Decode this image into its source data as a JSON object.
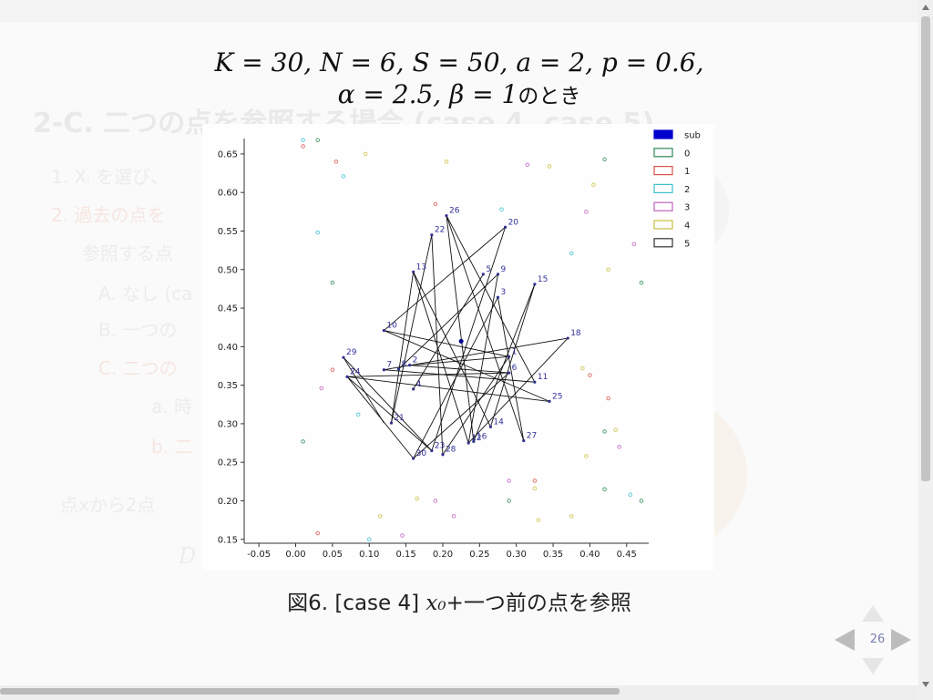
{
  "slide": {
    "formula_line1": "K = 30, N = 6, S = 50, a = 2, p = 0.6,",
    "formula_line2_math": "α = 2.5, β = 1",
    "formula_line2_text": "のとき",
    "caption_prefix": "図6. [case 4] ",
    "caption_math": "x₀",
    "caption_suffix": "+一つ前の点を参照",
    "page_number": "26",
    "background_text": {
      "heading": "2-C. 二つの点を参照する場合 (case 4, case 5)",
      "item1": "1. Xᵢ を選び、",
      "item2": "2. 過去の点を",
      "item2b": "参照する点",
      "itemA": "A. なし (ca",
      "itemB": "B. 一つの",
      "itemC": "C. 二つの",
      "itema": "a. 時",
      "itemb": "b. 二",
      "bullet": "点xから2点",
      "formula": "D"
    }
  },
  "icons": {
    "nav_left": "left-triangle-icon",
    "nav_right": "right-triangle-icon",
    "nav_up": "up-triangle-icon",
    "nav_down": "down-triangle-icon"
  },
  "chart_data": {
    "type": "scatter",
    "title": "",
    "xlabel": "",
    "ylabel": "",
    "xlim": [
      -0.07,
      0.48
    ],
    "ylim": [
      0.145,
      0.67
    ],
    "xticks": [
      -0.05,
      0.0,
      0.05,
      0.1,
      0.15,
      0.2,
      0.25,
      0.3,
      0.35,
      0.4,
      0.45
    ],
    "yticks": [
      0.15,
      0.2,
      0.25,
      0.3,
      0.35,
      0.4,
      0.45,
      0.5,
      0.55,
      0.6,
      0.65
    ],
    "legend_position": "top-right",
    "legend": [
      {
        "label": "sub",
        "color": "#0000cc",
        "filled": true
      },
      {
        "label": "0",
        "color": "#2e8b57",
        "filled": false
      },
      {
        "label": "1",
        "color": "#d9534f",
        "filled": false
      },
      {
        "label": "2",
        "color": "#3cbfcf",
        "filled": false
      },
      {
        "label": "3",
        "color": "#c060c0",
        "filled": false
      },
      {
        "label": "4",
        "color": "#c8c040",
        "filled": false
      },
      {
        "label": "5",
        "color": "#333333",
        "filled": false
      }
    ],
    "sub_point": {
      "x": 0.225,
      "y": 0.407
    },
    "labeled_points": [
      {
        "label": "1",
        "x": 0.29,
        "y": 0.387
      },
      {
        "label": "2",
        "x": 0.155,
        "y": 0.376
      },
      {
        "label": "3",
        "x": 0.275,
        "y": 0.464
      },
      {
        "label": "4",
        "x": 0.16,
        "y": 0.345
      },
      {
        "label": "5",
        "x": 0.255,
        "y": 0.494
      },
      {
        "label": "6",
        "x": 0.29,
        "y": 0.366
      },
      {
        "label": "7",
        "x": 0.12,
        "y": 0.37
      },
      {
        "label": "8",
        "x": 0.14,
        "y": 0.371
      },
      {
        "label": "9",
        "x": 0.275,
        "y": 0.494
      },
      {
        "label": "10",
        "x": 0.12,
        "y": 0.421
      },
      {
        "label": "11",
        "x": 0.325,
        "y": 0.354
      },
      {
        "label": "12",
        "x": 0.235,
        "y": 0.275
      },
      {
        "label": "13",
        "x": 0.16,
        "y": 0.497
      },
      {
        "label": "14",
        "x": 0.265,
        "y": 0.296
      },
      {
        "label": "15",
        "x": 0.325,
        "y": 0.481
      },
      {
        "label": "16",
        "x": 0.242,
        "y": 0.277
      },
      {
        "label": "18",
        "x": 0.37,
        "y": 0.411
      },
      {
        "label": "20",
        "x": 0.285,
        "y": 0.555
      },
      {
        "label": "21",
        "x": 0.13,
        "y": 0.301
      },
      {
        "label": "22",
        "x": 0.185,
        "y": 0.545
      },
      {
        "label": "23",
        "x": 0.185,
        "y": 0.265
      },
      {
        "label": "24",
        "x": 0.07,
        "y": 0.361
      },
      {
        "label": "25",
        "x": 0.345,
        "y": 0.329
      },
      {
        "label": "26",
        "x": 0.205,
        "y": 0.57
      },
      {
        "label": "27",
        "x": 0.31,
        "y": 0.278
      },
      {
        "label": "28",
        "x": 0.2,
        "y": 0.26
      },
      {
        "label": "29",
        "x": 0.065,
        "y": 0.386
      },
      {
        "label": "30",
        "x": 0.16,
        "y": 0.255
      }
    ],
    "edges": [
      [
        0.065,
        0.386,
        0.12,
        0.301
      ],
      [
        0.065,
        0.386,
        0.185,
        0.265
      ],
      [
        0.07,
        0.361,
        0.185,
        0.265
      ],
      [
        0.07,
        0.361,
        0.16,
        0.255
      ],
      [
        0.07,
        0.361,
        0.29,
        0.366
      ],
      [
        0.07,
        0.361,
        0.345,
        0.329
      ],
      [
        0.12,
        0.37,
        0.37,
        0.411
      ],
      [
        0.12,
        0.37,
        0.325,
        0.354
      ],
      [
        0.12,
        0.421,
        0.285,
        0.555
      ],
      [
        0.12,
        0.421,
        0.29,
        0.387
      ],
      [
        0.14,
        0.371,
        0.275,
        0.494
      ],
      [
        0.155,
        0.376,
        0.29,
        0.387
      ],
      [
        0.155,
        0.376,
        0.29,
        0.366
      ],
      [
        0.16,
        0.497,
        0.235,
        0.275
      ],
      [
        0.16,
        0.497,
        0.265,
        0.296
      ],
      [
        0.16,
        0.345,
        0.255,
        0.494
      ],
      [
        0.13,
        0.301,
        0.185,
        0.545
      ],
      [
        0.13,
        0.301,
        0.16,
        0.497
      ],
      [
        0.185,
        0.545,
        0.2,
        0.26
      ],
      [
        0.205,
        0.57,
        0.31,
        0.278
      ],
      [
        0.205,
        0.57,
        0.242,
        0.277
      ],
      [
        0.275,
        0.464,
        0.16,
        0.255
      ],
      [
        0.275,
        0.464,
        0.31,
        0.278
      ],
      [
        0.275,
        0.494,
        0.235,
        0.275
      ],
      [
        0.285,
        0.555,
        0.185,
        0.265
      ],
      [
        0.325,
        0.481,
        0.265,
        0.296
      ],
      [
        0.325,
        0.481,
        0.242,
        0.277
      ],
      [
        0.37,
        0.411,
        0.235,
        0.275
      ],
      [
        0.2,
        0.26,
        0.29,
        0.387
      ],
      [
        0.16,
        0.255,
        0.29,
        0.366
      ],
      [
        0.345,
        0.329,
        0.12,
        0.421
      ],
      [
        0.325,
        0.354,
        0.205,
        0.57
      ]
    ],
    "background_points": [
      {
        "x": 0.01,
        "y": 0.668,
        "c": "#3cbfcf"
      },
      {
        "x": 0.03,
        "y": 0.668,
        "c": "#2e8b57"
      },
      {
        "x": 0.01,
        "y": 0.66,
        "c": "#d9534f"
      },
      {
        "x": 0.095,
        "y": 0.65,
        "c": "#c8c040"
      },
      {
        "x": 0.055,
        "y": 0.64,
        "c": "#d9534f"
      },
      {
        "x": 0.065,
        "y": 0.621,
        "c": "#3cbfcf"
      },
      {
        "x": 0.205,
        "y": 0.64,
        "c": "#c8c040"
      },
      {
        "x": 0.315,
        "y": 0.636,
        "c": "#c060c0"
      },
      {
        "x": 0.345,
        "y": 0.634,
        "c": "#c8c040"
      },
      {
        "x": 0.42,
        "y": 0.643,
        "c": "#2e8b57"
      },
      {
        "x": 0.405,
        "y": 0.61,
        "c": "#c8c040"
      },
      {
        "x": 0.19,
        "y": 0.585,
        "c": "#d9534f"
      },
      {
        "x": 0.28,
        "y": 0.578,
        "c": "#3cbfcf"
      },
      {
        "x": 0.395,
        "y": 0.575,
        "c": "#c060c0"
      },
      {
        "x": 0.03,
        "y": 0.548,
        "c": "#3cbfcf"
      },
      {
        "x": 0.46,
        "y": 0.533,
        "c": "#c060c0"
      },
      {
        "x": 0.375,
        "y": 0.521,
        "c": "#3cbfcf"
      },
      {
        "x": 0.425,
        "y": 0.5,
        "c": "#c8c040"
      },
      {
        "x": 0.05,
        "y": 0.483,
        "c": "#2e8b57"
      },
      {
        "x": 0.47,
        "y": 0.483,
        "c": "#2e8b57"
      },
      {
        "x": 0.05,
        "y": 0.37,
        "c": "#d9534f"
      },
      {
        "x": 0.035,
        "y": 0.346,
        "c": "#c060c0"
      },
      {
        "x": 0.085,
        "y": 0.312,
        "c": "#3cbfcf"
      },
      {
        "x": 0.39,
        "y": 0.372,
        "c": "#c8c040"
      },
      {
        "x": 0.4,
        "y": 0.363,
        "c": "#d9534f"
      },
      {
        "x": 0.425,
        "y": 0.333,
        "c": "#d9534f"
      },
      {
        "x": 0.42,
        "y": 0.29,
        "c": "#2e8b57"
      },
      {
        "x": 0.435,
        "y": 0.292,
        "c": "#c8c040"
      },
      {
        "x": 0.44,
        "y": 0.27,
        "c": "#c060c0"
      },
      {
        "x": 0.395,
        "y": 0.258,
        "c": "#c8c040"
      },
      {
        "x": 0.01,
        "y": 0.277,
        "c": "#2e8b57"
      },
      {
        "x": 0.29,
        "y": 0.226,
        "c": "#c060c0"
      },
      {
        "x": 0.325,
        "y": 0.226,
        "c": "#d9534f"
      },
      {
        "x": 0.325,
        "y": 0.216,
        "c": "#c8c040"
      },
      {
        "x": 0.29,
        "y": 0.2,
        "c": "#2e8b57"
      },
      {
        "x": 0.42,
        "y": 0.215,
        "c": "#2e8b57"
      },
      {
        "x": 0.455,
        "y": 0.208,
        "c": "#3cbfcf"
      },
      {
        "x": 0.47,
        "y": 0.2,
        "c": "#2e8b57"
      },
      {
        "x": 0.165,
        "y": 0.203,
        "c": "#c8c040"
      },
      {
        "x": 0.19,
        "y": 0.2,
        "c": "#c060c0"
      },
      {
        "x": 0.115,
        "y": 0.18,
        "c": "#c8c040"
      },
      {
        "x": 0.215,
        "y": 0.18,
        "c": "#c060c0"
      },
      {
        "x": 0.33,
        "y": 0.175,
        "c": "#c8c040"
      },
      {
        "x": 0.375,
        "y": 0.18,
        "c": "#c8c040"
      },
      {
        "x": 0.03,
        "y": 0.158,
        "c": "#d9534f"
      },
      {
        "x": 0.1,
        "y": 0.15,
        "c": "#3cbfcf"
      },
      {
        "x": 0.145,
        "y": 0.155,
        "c": "#c060c0"
      }
    ]
  }
}
